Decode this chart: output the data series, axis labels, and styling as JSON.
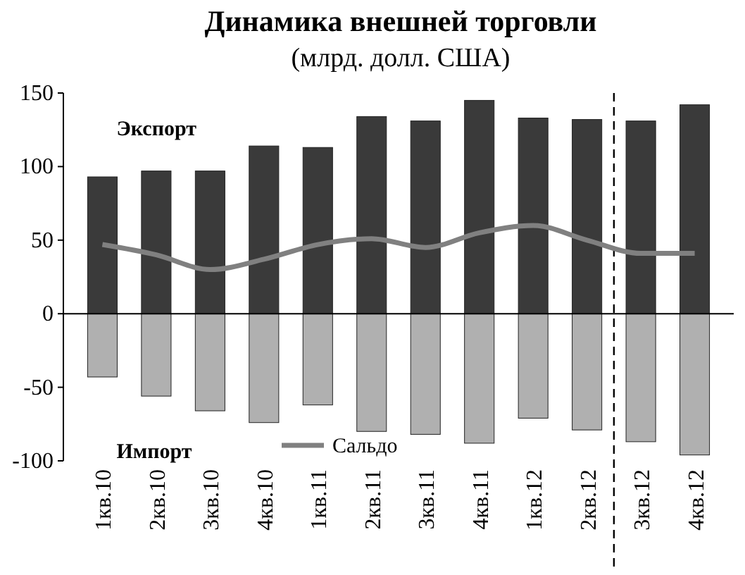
{
  "chart_data": {
    "type": "bar",
    "title": "Динамика внешней торговли",
    "subtitle": "(млрд. долл. США)",
    "categories": [
      "1кв.10",
      "2кв.10",
      "3кв.10",
      "4кв.10",
      "1кв.11",
      "2кв.11",
      "3кв.11",
      "4кв.11",
      "1кв.12",
      "2кв.12",
      "3кв.12",
      "4кв.12"
    ],
    "stacked": true,
    "series": [
      {
        "name": "Экспорт",
        "color": "#3a3a3a",
        "values": [
          93,
          97,
          97,
          114,
          113,
          134,
          131,
          145,
          133,
          132,
          131,
          142
        ]
      },
      {
        "name": "Импорт",
        "color": "#b0b0b0",
        "values": [
          -43,
          -56,
          -66,
          -74,
          -62,
          -80,
          -82,
          -88,
          -71,
          -79,
          -87,
          -96
        ]
      },
      {
        "name": "Сальдо",
        "type": "line",
        "color": "#808080",
        "values": [
          47,
          40,
          30,
          37,
          47,
          51,
          45,
          55,
          60,
          50,
          41,
          41
        ]
      }
    ],
    "ylim": [
      -100,
      150
    ],
    "yticks": [
      -100,
      -50,
      0,
      50,
      100,
      150
    ],
    "legend": "bottom",
    "marker": "none"
  }
}
